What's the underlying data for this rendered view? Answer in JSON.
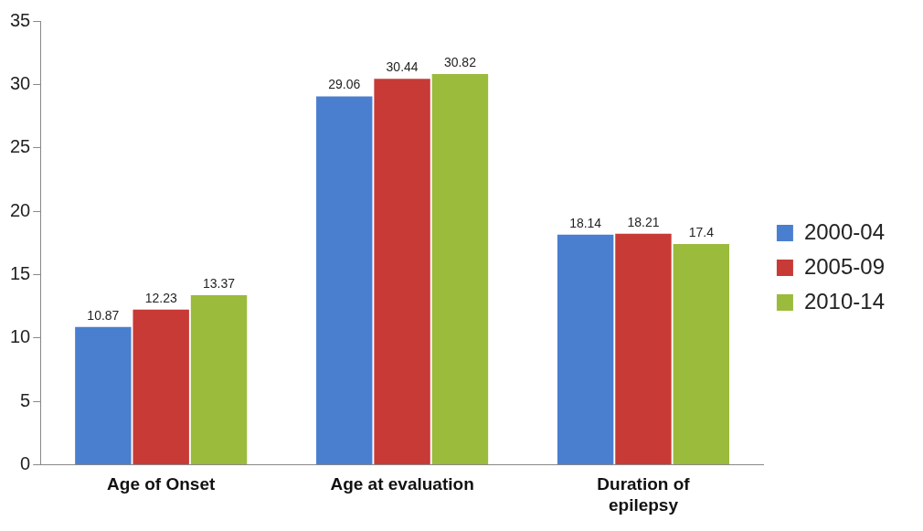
{
  "chart_data": {
    "type": "bar",
    "categories": [
      "Age of Onset",
      "Age at evaluation",
      "Duration of epilepsy"
    ],
    "series": [
      {
        "name": "2000-04",
        "color": "#4a7fd0",
        "values": [
          10.87,
          29.06,
          18.14
        ]
      },
      {
        "name": "2005-09",
        "color": "#c83a36",
        "values": [
          12.23,
          30.44,
          18.21
        ]
      },
      {
        "name": "2010-14",
        "color": "#9bbb3c",
        "values": [
          13.37,
          30.82,
          17.4
        ]
      }
    ],
    "ylim": [
      0,
      35
    ],
    "yticks": [
      0,
      5,
      10,
      15,
      20,
      25,
      30,
      35
    ],
    "grid": false,
    "legend": "right",
    "data_labels": true
  }
}
